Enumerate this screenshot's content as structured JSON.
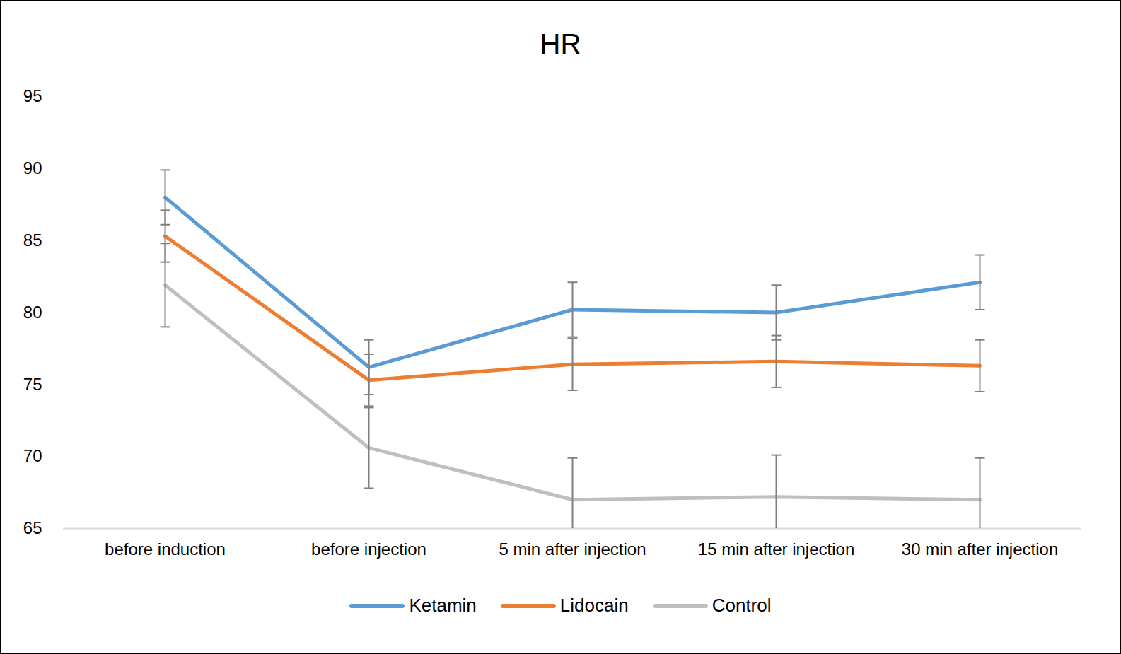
{
  "chart_data": {
    "type": "line",
    "title": "HR",
    "categories": [
      "before induction",
      "before injection",
      "5 min after injection",
      "15 min after injection",
      "30 min after injection"
    ],
    "series": [
      {
        "name": "Ketamin",
        "color": "#5b9bd5",
        "values": [
          88.0,
          76.2,
          80.2,
          80.0,
          82.1
        ],
        "errors": [
          1.9,
          1.9,
          1.9,
          1.9,
          1.9
        ]
      },
      {
        "name": "Lidocain",
        "color": "#ed7d31",
        "values": [
          85.3,
          75.3,
          76.4,
          76.6,
          76.3
        ],
        "errors": [
          1.8,
          1.8,
          1.8,
          1.8,
          1.8
        ]
      },
      {
        "name": "Control",
        "color": "#bfbfbf",
        "values": [
          81.9,
          70.6,
          67.0,
          67.2,
          67.0
        ],
        "errors": [
          2.9,
          2.8,
          2.9,
          2.9,
          2.9
        ]
      }
    ],
    "ylim": [
      65,
      95
    ],
    "yticks": [
      65,
      70,
      75,
      80,
      85,
      90,
      95
    ],
    "grid": false,
    "legend": "bottom"
  }
}
